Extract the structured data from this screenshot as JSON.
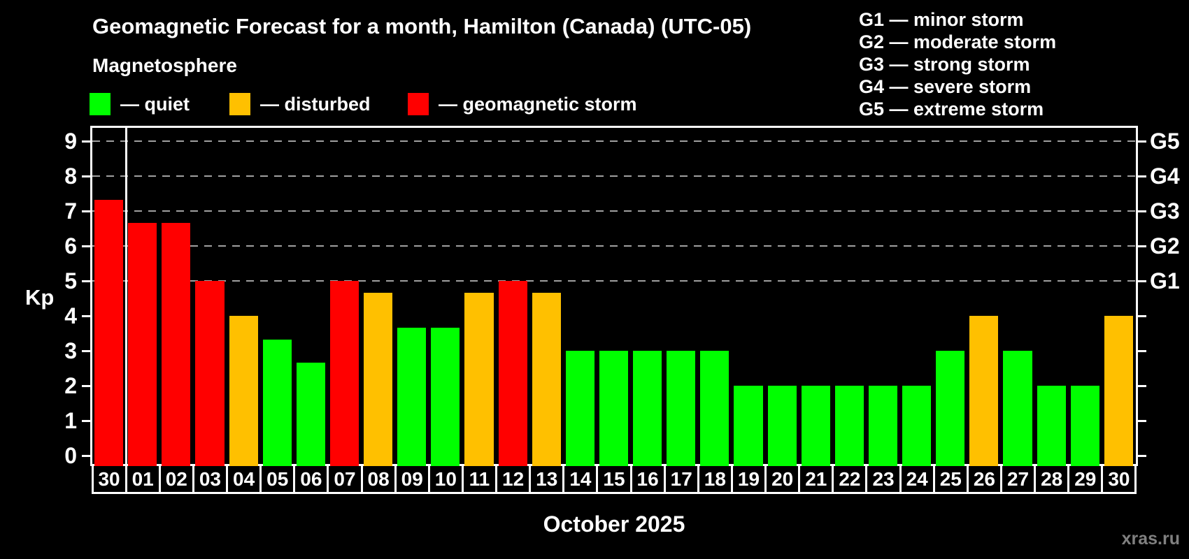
{
  "header": {
    "title": "Geomagnetic Forecast for a month, Hamilton (Canada) (UTC-05)",
    "subtitle": "Magnetosphere"
  },
  "legend": [
    {
      "key": "quiet",
      "label": "— quiet",
      "color": "#00ff00"
    },
    {
      "key": "disturbed",
      "label": "— disturbed",
      "color": "#ffc000"
    },
    {
      "key": "storm",
      "label": "— geomagnetic storm",
      "color": "#ff0000"
    }
  ],
  "g_legend": [
    "G1 — minor storm",
    "G2 — moderate storm",
    "G3 — strong storm",
    "G4 — severe storm",
    "G5 — extreme storm"
  ],
  "axis": {
    "ylabel": "Kp",
    "kp_ticks": [
      0,
      1,
      2,
      3,
      4,
      5,
      6,
      7,
      8,
      9
    ],
    "right_labels": [
      {
        "label": "G1",
        "kp": 5
      },
      {
        "label": "G2",
        "kp": 6
      },
      {
        "label": "G3",
        "kp": 7
      },
      {
        "label": "G4",
        "kp": 8
      },
      {
        "label": "G5",
        "kp": 9
      }
    ]
  },
  "chart_data": {
    "type": "bar",
    "title": "Geomagnetic Forecast for a month, Hamilton (Canada) (UTC-05)",
    "subtitle": "Magnetosphere",
    "xlabel": "October 2025",
    "ylabel": "Kp",
    "ylim": [
      0,
      9
    ],
    "grid": "horizontal dashed gridlines at Kp 5,6,7,8,9 (G1–G5 levels)",
    "legend_position": "top-left",
    "categories": [
      "30",
      "01",
      "02",
      "03",
      "04",
      "05",
      "06",
      "07",
      "08",
      "09",
      "10",
      "11",
      "12",
      "13",
      "14",
      "15",
      "16",
      "17",
      "18",
      "19",
      "20",
      "21",
      "22",
      "23",
      "24",
      "25",
      "26",
      "27",
      "28",
      "29",
      "30"
    ],
    "values": [
      7.33,
      6.67,
      6.67,
      5,
      4,
      3.33,
      2.67,
      5,
      4.67,
      3.67,
      3.67,
      4.67,
      5,
      4.67,
      3,
      3,
      3,
      3,
      3,
      2,
      2,
      2,
      2,
      2,
      2,
      3,
      4,
      3,
      2,
      2,
      4
    ],
    "statuses": [
      "storm",
      "storm",
      "storm",
      "storm",
      "disturbed",
      "quiet",
      "quiet",
      "storm",
      "disturbed",
      "quiet",
      "quiet",
      "disturbed",
      "storm",
      "disturbed",
      "quiet",
      "quiet",
      "quiet",
      "quiet",
      "quiet",
      "quiet",
      "quiet",
      "quiet",
      "quiet",
      "quiet",
      "quiet",
      "quiet",
      "disturbed",
      "quiet",
      "quiet",
      "quiet",
      "disturbed"
    ],
    "separator_after_index": 0,
    "gridline_kp_levels": [
      5,
      6,
      7,
      8,
      9
    ]
  },
  "footer": {
    "month_label": "October 2025",
    "watermark": "xras.ru"
  },
  "colors": {
    "quiet": "#00ff00",
    "disturbed": "#ffc000",
    "storm": "#ff0000",
    "grid": "#a0a0a0",
    "axis": "#ffffff",
    "background": "#000000",
    "watermark": "#808080"
  }
}
